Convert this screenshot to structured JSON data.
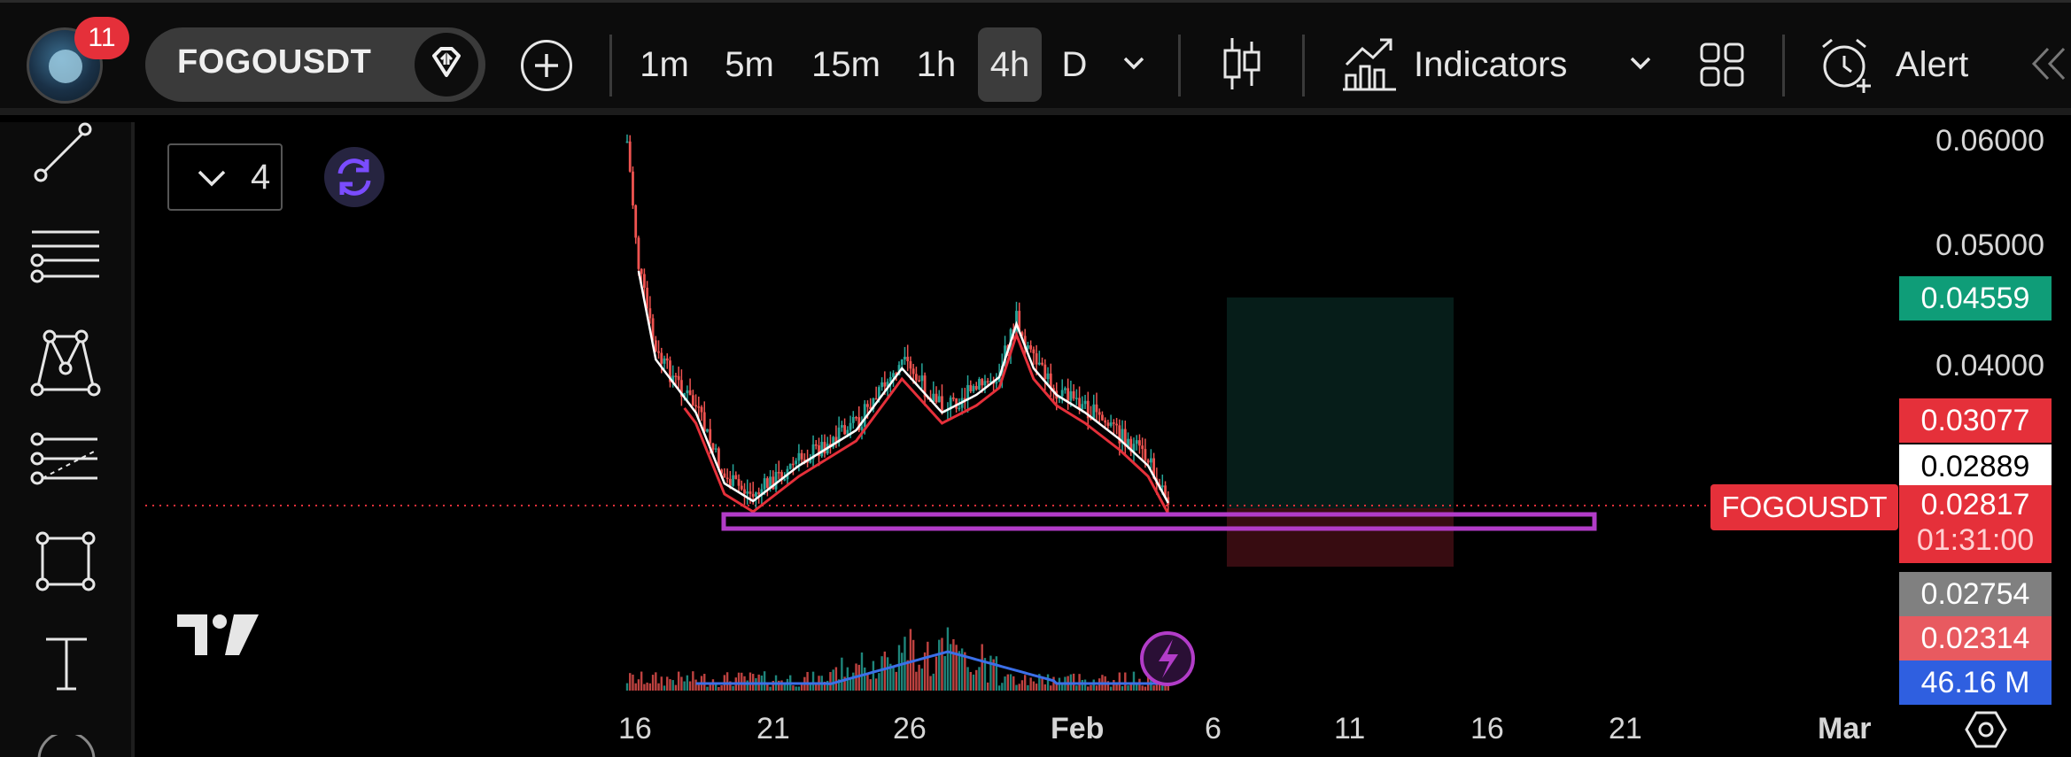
{
  "app": {
    "notification_count": "11",
    "symbol": "FOGOUSDT"
  },
  "timeframes": [
    {
      "label": "1m",
      "active": false
    },
    {
      "label": "5m",
      "active": false
    },
    {
      "label": "15m",
      "active": false
    },
    {
      "label": "1h",
      "active": false
    },
    {
      "label": "4h",
      "active": true
    },
    {
      "label": "D",
      "active": false
    }
  ],
  "toolbar": {
    "indicators_label": "Indicators",
    "alert_label": "Alert"
  },
  "left_tools": [
    {
      "name": "trend-line-icon"
    },
    {
      "name": "horizontal-lines-icon"
    },
    {
      "name": "pattern-icon"
    },
    {
      "name": "fib-lines-icon"
    },
    {
      "name": "rectangle-icon"
    },
    {
      "name": "text-icon"
    }
  ],
  "chart": {
    "series_count": "4",
    "price_axis": [
      "0.06000",
      "0.05000",
      "0.04000"
    ],
    "date_axis": [
      "16",
      "21",
      "26",
      "Feb",
      "6",
      "11",
      "16",
      "21",
      "Mar"
    ],
    "symbol_tag": "FOGOUSDT",
    "price_tags": [
      {
        "value": "0.04559",
        "bg": "#0f9d78",
        "color": "#ffffff"
      },
      {
        "value": "0.03077",
        "bg": "#e5303a",
        "color": "#ffffff"
      },
      {
        "value": "0.02889",
        "bg": "#ffffff",
        "color": "#000000"
      },
      {
        "value": "0.02817",
        "bg": "#e5303a",
        "color": "#ffffff"
      },
      {
        "value": "0.02754",
        "bg": "#808080",
        "color": "#ffffff"
      },
      {
        "value": "0.02314",
        "bg": "#e85a60",
        "color": "#ffffff"
      },
      {
        "value": "46.16 M",
        "bg": "#2f5fe0",
        "color": "#ffffff"
      }
    ],
    "countdown": "01:31:00",
    "colors": {
      "up": "#26a69a",
      "down": "#ef5350",
      "ma_fast": "#ffffff",
      "ma_slow": "#e5303a",
      "volume_ma": "#3b6fe8",
      "zone": "#b23cc8"
    }
  }
}
